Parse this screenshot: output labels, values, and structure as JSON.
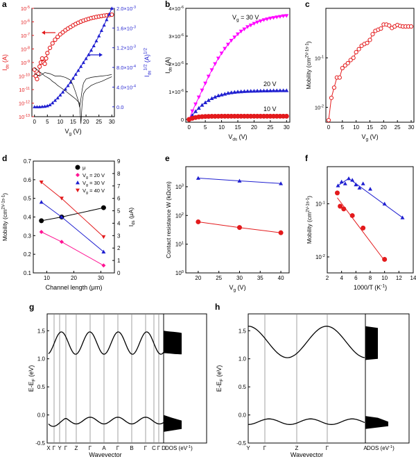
{
  "figure": {
    "colors": {
      "red": "#e31a1c",
      "blue": "#1f1fd0",
      "magenta": "#ff00ff",
      "black": "#000000",
      "grey": "#808080"
    }
  },
  "chart_data": [
    {
      "panel": "a",
      "type": "line",
      "x_label": "V_g (V)",
      "y_label": "I_ds (A)",
      "y2_label": "I_ds^1/2 (A)^1/2",
      "y_scale": "log",
      "ylim": [
        1e-13,
        1e-05
      ],
      "y2lim": [
        -0.0002,
        0.002
      ],
      "xlim": [
        -1,
        31
      ],
      "x_ticks": [
        "0",
        "5",
        "10",
        "15",
        "20",
        "25",
        "30"
      ],
      "y_ticks": [
        "10^-13",
        "10^-12",
        "10^-11",
        "10^-10",
        "10^-9",
        "10^-8",
        "10^-7",
        "10^-6",
        "10^-5"
      ],
      "y2_ticks": [
        "0.0",
        "4.0×10^-4",
        "8.0×10^-4",
        "1.2×10^-3",
        "1.6×10^-3",
        "2.0×10^-3"
      ],
      "series": [
        {
          "axis": "left",
          "color": "#e31a1c",
          "marker": "circle",
          "x": [
            0,
            0.5,
            1,
            1.5,
            2,
            2.5,
            3,
            3.5,
            4,
            4.5,
            5,
            6,
            7,
            8,
            9,
            10,
            11,
            12,
            13,
            14,
            15,
            16,
            17,
            18,
            19,
            20,
            21,
            22,
            23,
            24,
            25,
            26,
            27,
            28,
            29,
            30
          ],
          "y": [
            3e-10,
            1e-10,
            6e-11,
            1.5e-10,
            5e-10,
            1e-09,
            2e-09,
            1e-09,
            8e-10,
            2e-09,
            5e-09,
            1.2e-08,
            2.6e-08,
            4.8e-08,
            7.8e-08,
            1.2e-07,
            1.7e-07,
            2.4e-07,
            3.2e-07,
            4.2e-07,
            5.5e-07,
            7e-07,
            8.6e-07,
            1.05e-06,
            1.25e-06,
            1.45e-06,
            1.65e-06,
            1.9e-06,
            2.1e-06,
            2.3e-06,
            2.5e-06,
            2.7e-06,
            2.9e-06,
            3.05e-06,
            3.2e-06,
            3.4e-06
          ]
        },
        {
          "axis": "right",
          "color": "#1f1fd0",
          "marker": "triangle",
          "x": [
            0,
            1,
            2,
            3,
            4,
            5,
            6,
            7,
            8,
            9,
            10,
            11,
            12,
            13,
            14,
            15,
            16,
            17,
            18,
            19,
            20,
            21,
            22,
            23,
            24,
            25,
            26,
            27,
            28,
            29,
            30
          ],
          "y": [
            0,
            0,
            0,
            5e-06,
            1e-05,
            2e-05,
            4e-05,
            8e-05,
            0.00013,
            0.00018,
            0.00024,
            0.0003,
            0.00036,
            0.00043,
            0.0005,
            0.00058,
            0.00066,
            0.00074,
            0.00082,
            0.0009,
            0.00098,
            0.00106,
            0.00115,
            0.00124,
            0.00134,
            0.00144,
            0.00155,
            0.00166,
            0.00177,
            0.00188,
            0.002
          ]
        },
        {
          "axis": "left",
          "color": "#000000",
          "marker": "none",
          "x": [
            0,
            2,
            4,
            6,
            8,
            10,
            12,
            14,
            15,
            16,
            17,
            17.5,
            18,
            18.5,
            19,
            20,
            22,
            24,
            26,
            28,
            29,
            30
          ],
          "y": [
            1.5e-10,
            1e-10,
            1.8e-10,
            1.5e-10,
            1e-10,
            1e-10,
            8e-11,
            5e-11,
            2e-11,
            6e-12,
            1.5e-12,
            5e-13,
            2e-12,
            1e-11,
            3e-11,
            6e-11,
            8e-11,
            9e-11,
            1e-10,
            1.1e-10,
            1.2e-10,
            1.3e-10
          ]
        },
        {
          "axis": "left",
          "color": "#000000",
          "marker": "none",
          "x": [
            0,
            1,
            2,
            3,
            4,
            5,
            6,
            7,
            8,
            9,
            10,
            12,
            14,
            16,
            17.5,
            18,
            18.5,
            19,
            20,
            22,
            24,
            26,
            28,
            30
          ],
          "y": [
            4e-10,
            3e-10,
            2e-10,
            1.5e-10,
            1e-10,
            8e-11,
            6e-11,
            4e-11,
            3e-11,
            2e-11,
            1.5e-11,
            8e-12,
            4e-12,
            2e-12,
            1e-12,
            3e-14,
            1e-12,
            5e-12,
            1e-11,
            2e-11,
            3e-11,
            4e-11,
            6e-11,
            9e-11
          ]
        }
      ]
    },
    {
      "panel": "b",
      "type": "line",
      "x_label": "V_ds (V)",
      "y_label": "I_ds (A)",
      "xlim": [
        -1,
        31
      ],
      "ylim": [
        -1e-07,
        4e-06
      ],
      "x_ticks": [
        "0",
        "5",
        "10",
        "15",
        "20",
        "25",
        "30"
      ],
      "y_ticks": [
        "0",
        "1×10^-6",
        "2×10^-6",
        "3×10^-6",
        "4×10^-6"
      ],
      "annotations": [
        "V_g = 30 V",
        "20 V",
        "10 V"
      ],
      "series": [
        {
          "name": "V_g = 30 V",
          "color": "#ff00ff",
          "marker": "triangle-down",
          "x": [
            0,
            1,
            2,
            3,
            4,
            5,
            6,
            7,
            8,
            9,
            10,
            11,
            12,
            13,
            14,
            15,
            16,
            17,
            18,
            19,
            20,
            21,
            22,
            23,
            24,
            25,
            26,
            27,
            28,
            29,
            30
          ],
          "y": [
            0,
            3e-07,
            5.5e-07,
            8e-07,
            1.05e-06,
            1.3e-06,
            1.55e-06,
            1.78e-06,
            2e-06,
            2.2e-06,
            2.38e-06,
            2.55e-06,
            2.7e-06,
            2.84e-06,
            2.96e-06,
            3.07e-06,
            3.17e-06,
            3.25e-06,
            3.33e-06,
            3.39e-06,
            3.45e-06,
            3.5e-06,
            3.54e-06,
            3.58e-06,
            3.61e-06,
            3.64e-06,
            3.66e-06,
            3.68e-06,
            3.7e-06,
            3.72e-06,
            3.73e-06
          ]
        },
        {
          "name": "20 V",
          "color": "#1f1fd0",
          "marker": "triangle",
          "x": [
            0,
            1,
            2,
            3,
            4,
            5,
            6,
            7,
            8,
            9,
            10,
            11,
            12,
            13,
            14,
            15,
            16,
            17,
            18,
            19,
            20,
            21,
            22,
            23,
            24,
            25,
            26,
            27,
            28,
            29,
            30
          ],
          "y": [
            0,
            1.5e-07,
            2.9e-07,
            4.1e-07,
            5.2e-07,
            6.1e-07,
            6.9e-07,
            7.6e-07,
            8.1e-07,
            8.6e-07,
            8.9e-07,
            9.2e-07,
            9.5e-07,
            9.7e-07,
            9.85e-07,
            9.97e-07,
            1.005e-06,
            1.012e-06,
            1.018e-06,
            1.022e-06,
            1.026e-06,
            1.03e-06,
            1.032e-06,
            1.034e-06,
            1.036e-06,
            1.038e-06,
            1.04e-06,
            1.042e-06,
            1.043e-06,
            1.044e-06,
            1.045e-06
          ]
        },
        {
          "name": "10 V",
          "color": "#e31a1c",
          "marker": "circle",
          "x": [
            0,
            1,
            2,
            3,
            4,
            5,
            6,
            7,
            8,
            9,
            10,
            11,
            12,
            13,
            14,
            15,
            16,
            17,
            18,
            19,
            20,
            21,
            22,
            23,
            24,
            25,
            26,
            27,
            28,
            29,
            30
          ],
          "y": [
            0,
            4e-08,
            7e-08,
            9e-08,
            1e-07,
            1.07e-07,
            1.1e-07,
            1.12e-07,
            1.13e-07,
            1.14e-07,
            1.15e-07,
            1.15e-07,
            1.15e-07,
            1.15e-07,
            1.15e-07,
            1.15e-07,
            1.15e-07,
            1.15e-07,
            1.15e-07,
            1.15e-07,
            1.15e-07,
            1.15e-07,
            1.15e-07,
            1.15e-07,
            1.15e-07,
            1.15e-07,
            1.15e-07,
            1.15e-07,
            1.15e-07,
            1.15e-07,
            1.15e-07
          ]
        }
      ]
    },
    {
      "panel": "c",
      "type": "line",
      "x_label": "V_g (V)",
      "y_label": "Mobility (cm^2V^-1s^-1)",
      "y_scale": "log",
      "xlim": [
        -1,
        31
      ],
      "ylim": [
        0.005,
        1
      ],
      "x_ticks": [
        "0",
        "5",
        "10",
        "15",
        "20",
        "25",
        "30"
      ],
      "y_ticks": [
        "10^-2",
        "10^-1"
      ],
      "series": [
        {
          "color": "#e31a1c",
          "marker": "circle",
          "x": [
            0,
            1,
            2,
            3,
            4,
            5,
            6,
            7,
            8,
            9,
            10,
            11,
            12,
            13,
            14,
            15,
            16,
            17,
            18,
            19,
            20,
            21,
            22,
            23,
            24,
            25,
            26,
            27,
            28,
            29,
            30
          ],
          "y": [
            0.0055,
            0.0155,
            0.025,
            0.04,
            0.04,
            0.062,
            0.07,
            0.078,
            0.09,
            0.1,
            0.13,
            0.15,
            0.175,
            0.19,
            0.2,
            0.23,
            0.3,
            0.35,
            0.37,
            0.39,
            0.47,
            0.47,
            0.45,
            0.4,
            0.43,
            0.46,
            0.44,
            0.43,
            0.43,
            0.43,
            0.43
          ]
        }
      ]
    },
    {
      "panel": "d",
      "type": "line",
      "x_label": "Channel length (μm)",
      "y_label": "Mobility (cm^2V^-1s^-1)",
      "y2_label": "I_ds (μA)",
      "xlim": [
        5,
        35
      ],
      "ylim": [
        0.1,
        0.7
      ],
      "y2lim": [
        0,
        9
      ],
      "x_ticks": [
        "10",
        "20",
        "30"
      ],
      "y_ticks": [
        "0.1",
        "0.2",
        "0.3",
        "0.4",
        "0.5",
        "0.6",
        "0.7"
      ],
      "y2_ticks": [
        "0",
        "1",
        "2",
        "3",
        "4",
        "5",
        "6",
        "7",
        "8",
        "9"
      ],
      "series": [
        {
          "name": "μ",
          "axis": "left",
          "color": "#000000",
          "marker": "circle",
          "x": [
            8,
            15.5,
            31
          ],
          "y": [
            0.38,
            0.4,
            0.45
          ]
        },
        {
          "name": "V_g = 20 V",
          "axis": "right",
          "color": "#ff1493",
          "marker": "diamond",
          "x": [
            8,
            15.5,
            31
          ],
          "y": [
            3.3,
            2.5,
            0.6
          ]
        },
        {
          "name": "V_g = 30 V",
          "axis": "right",
          "color": "#1f1fd0",
          "marker": "triangle",
          "x": [
            8,
            15.5,
            31
          ],
          "y": [
            5.7,
            4.5,
            1.7
          ]
        },
        {
          "name": "V_g = 40 V",
          "axis": "right",
          "color": "#e31a1c",
          "marker": "triangle-down",
          "x": [
            8,
            15.5,
            31
          ],
          "y": [
            7.3,
            6,
            2.9
          ]
        }
      ]
    },
    {
      "panel": "e",
      "type": "line",
      "x_label": "V_g (V)",
      "y_label": "Contact resistance W (kΩcm)",
      "y_scale": "log",
      "xlim": [
        17,
        42
      ],
      "ylim": [
        1,
        5000
      ],
      "x_ticks": [
        "20",
        "25",
        "30",
        "35",
        "40"
      ],
      "y_ticks": [
        "10^0",
        "10^1",
        "10^2",
        "10^3"
      ],
      "series": [
        {
          "color": "#1f1fd0",
          "marker": "triangle",
          "x": [
            20,
            30,
            40
          ],
          "y": [
            2000,
            1600,
            1300
          ]
        },
        {
          "color": "#e31a1c",
          "marker": "circle",
          "x": [
            20,
            30,
            40
          ],
          "y": [
            60,
            38,
            25
          ]
        }
      ]
    },
    {
      "panel": "f",
      "type": "scatter",
      "x_label": "1000/T (K^-1)",
      "y_label": "Mobility (cm^2V^-1s^-1)",
      "y_scale": "log",
      "xlim": [
        2,
        14
      ],
      "ylim": [
        0.005,
        0.5
      ],
      "x_ticks": [
        "2",
        "4",
        "6",
        "8",
        "10",
        "12",
        "14"
      ],
      "y_ticks": [
        "10^-2",
        "10^-1"
      ],
      "series": [
        {
          "color": "#1f1fd0",
          "marker": "triangle",
          "x": [
            3.5,
            4,
            4.5,
            5,
            5.5,
            6,
            6.5,
            7,
            8,
            10,
            12.5
          ],
          "y": [
            0.22,
            0.26,
            0.24,
            0.3,
            0.28,
            0.23,
            0.2,
            0.24,
            0.19,
            0.1,
            0.055
          ]
        },
        {
          "color": "#e31a1c",
          "marker": "circle",
          "x": [
            3.4,
            3.8,
            4.3,
            5.5,
            7,
            10
          ],
          "y": [
            0.16,
            0.09,
            0.08,
            0.06,
            0.035,
            0.009
          ]
        }
      ]
    },
    {
      "panel": "g",
      "type": "line",
      "x_label": "Wavevector",
      "x2_label": "DOS (eV^-1)",
      "y_label": "E-E_F (eV)",
      "ylim": [
        -0.5,
        1.8
      ],
      "y_ticks": [
        "-0.5",
        "0.0",
        "0.5",
        "1.0",
        "1.5"
      ],
      "k_labels": [
        "X",
        "Γ",
        "Y",
        "Γ",
        "Z",
        "Γ",
        "A",
        "Γ",
        "B",
        "Γ",
        "C",
        "Γ",
        "D"
      ]
    },
    {
      "panel": "h",
      "type": "line",
      "x_label": "Wavevector",
      "x2_label": "DOS (eV^-1)",
      "y_label": "E-E_F (eV)",
      "ylim": [
        -0.5,
        1.8
      ],
      "y_ticks": [
        "-0.5",
        "0.0",
        "0.5",
        "1.0",
        "1.5"
      ],
      "k_labels": [
        "Y",
        "Γ",
        "Z",
        "Γ",
        "A"
      ]
    }
  ]
}
